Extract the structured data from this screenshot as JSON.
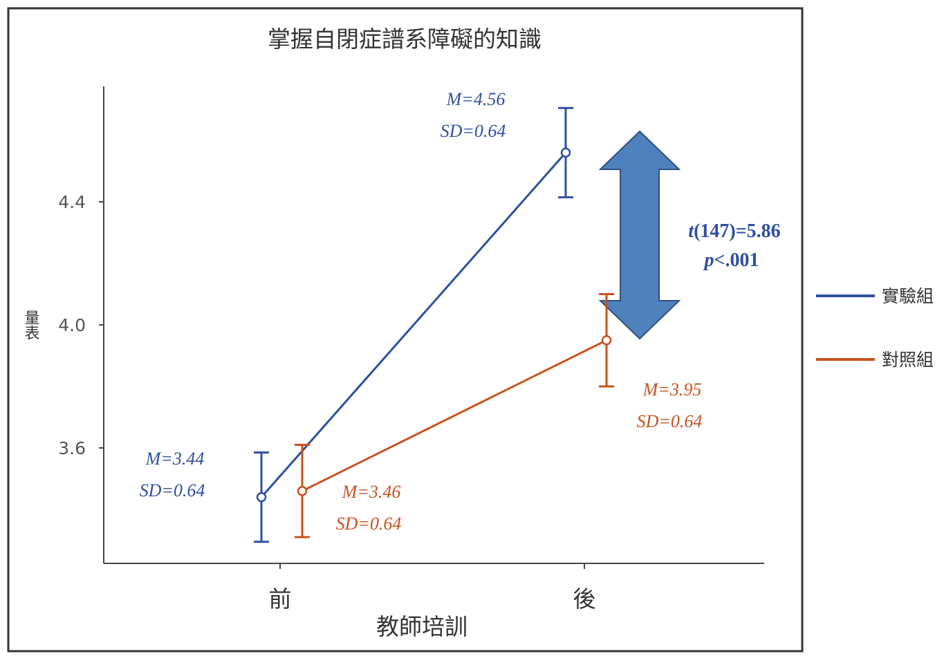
{
  "chart_data": {
    "type": "line",
    "title": "掌握自閉症譜系障礙的知識",
    "xlabel": "教師培訓",
    "ylabel": "量表",
    "categories": [
      "前",
      "後"
    ],
    "yticks": [
      "3.6",
      "4.0",
      "4.4"
    ],
    "ylim": [
      3.3,
      4.75
    ],
    "grid": false,
    "legend_position": "right",
    "series": [
      {
        "name": "實驗組",
        "color": "#2f4fa0",
        "values": [
          3.44,
          4.56
        ],
        "error": [
          0.145,
          0.145
        ],
        "labels": [
          {
            "mean": "M=3.44",
            "sd": "SD=0.64"
          },
          {
            "mean": "M=4.56",
            "sd": "SD=0.64"
          }
        ]
      },
      {
        "name": "對照組",
        "color": "#c8511e",
        "values": [
          3.46,
          3.95
        ],
        "error": [
          0.15,
          0.15
        ],
        "labels": [
          {
            "mean": "M=3.46",
            "sd": "SD=0.64"
          },
          {
            "mean": "M=3.95",
            "sd": "SD=0.64"
          }
        ]
      }
    ],
    "annotation": {
      "t_stat": "t",
      "t_rest": "(147)=5.86",
      "p_stat": "p",
      "p_rest": "<.001",
      "arrow_color": "#4f81bd"
    }
  }
}
